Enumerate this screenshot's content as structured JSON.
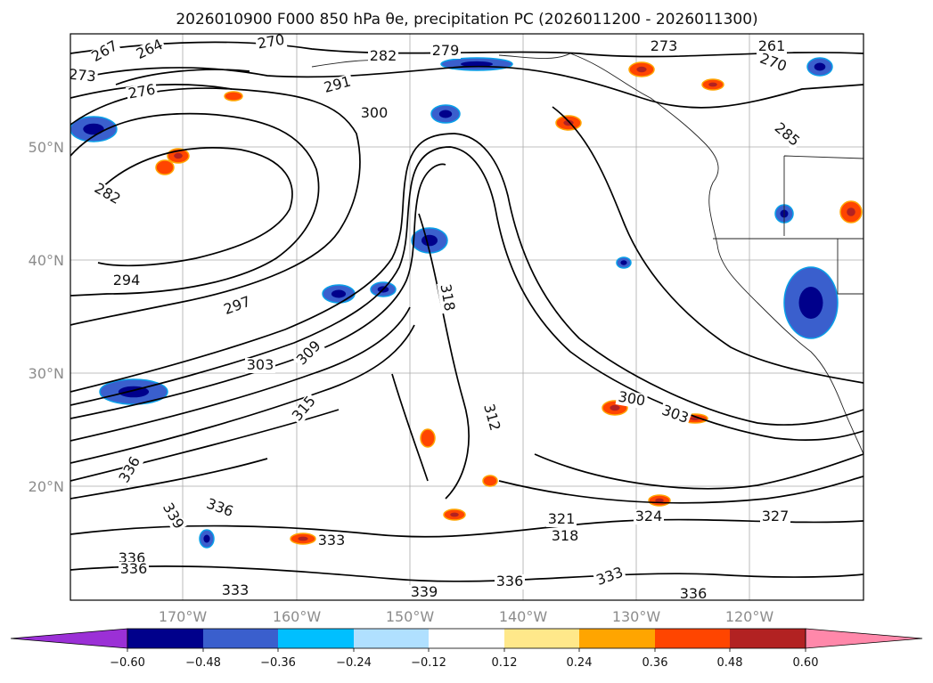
{
  "map": {
    "title": "2026010900 F000 850 hPa θe, precipitation PC (2026011200 - 2026011300)",
    "lat_labels": [
      "50°N",
      "40°N",
      "30°N",
      "20°N"
    ],
    "lon_labels": [
      "170°W",
      "160°W",
      "150°W",
      "140°W",
      "130°W",
      "120°W"
    ],
    "contour_labels": [
      {
        "text": "267"
      },
      {
        "text": "264"
      },
      {
        "text": "270"
      },
      {
        "text": "273"
      },
      {
        "text": "276"
      },
      {
        "text": "279"
      },
      {
        "text": "282"
      },
      {
        "text": "291"
      },
      {
        "text": "300"
      },
      {
        "text": "282"
      },
      {
        "text": "294"
      },
      {
        "text": "297"
      },
      {
        "text": "303"
      },
      {
        "text": "309"
      },
      {
        "text": "318"
      },
      {
        "text": "312"
      },
      {
        "text": "336"
      },
      {
        "text": "336"
      },
      {
        "text": "339"
      },
      {
        "text": "333"
      },
      {
        "text": "339"
      },
      {
        "text": "336"
      },
      {
        "text": "333"
      },
      {
        "text": "336"
      },
      {
        "text": "321"
      },
      {
        "text": "318"
      },
      {
        "text": "324"
      },
      {
        "text": "327"
      },
      {
        "text": "300"
      },
      {
        "text": "303"
      },
      {
        "text": "315"
      },
      {
        "text": "273"
      },
      {
        "text": "261"
      },
      {
        "text": "270"
      },
      {
        "text": "285"
      },
      {
        "text": "336"
      },
      {
        "text": "336"
      },
      {
        "text": "333"
      }
    ],
    "features": [
      {
        "kind": "neg"
      },
      {
        "kind": "neg"
      },
      {
        "kind": "neg"
      },
      {
        "kind": "neg"
      },
      {
        "kind": "neg"
      },
      {
        "kind": "neg"
      },
      {
        "kind": "neg"
      },
      {
        "kind": "neg"
      },
      {
        "kind": "neg"
      },
      {
        "kind": "neg"
      },
      {
        "kind": "neg"
      },
      {
        "kind": "neg"
      },
      {
        "kind": "pos"
      },
      {
        "kind": "pos"
      },
      {
        "kind": "pos"
      },
      {
        "kind": "pos"
      },
      {
        "kind": "pos"
      },
      {
        "kind": "pos"
      },
      {
        "kind": "pos"
      },
      {
        "kind": "pos"
      },
      {
        "kind": "pos"
      },
      {
        "kind": "pos"
      },
      {
        "kind": "pos"
      },
      {
        "kind": "pos"
      },
      {
        "kind": "pos"
      },
      {
        "kind": "pos"
      }
    ]
  },
  "colorbar": {
    "colors": [
      "#9b30d6",
      "#00008b",
      "#3a5fcd",
      "#0aa0e8",
      "#00bfff",
      "#b0e0ff",
      "#ffffff",
      "#ffffff",
      "#ffe88a",
      "#ffa500",
      "#ff4500",
      "#b22222",
      "#ff88aa"
    ],
    "tick_labels": [
      "−0.60",
      "−0.48",
      "−0.36",
      "−0.24",
      "−0.12",
      "0.12",
      "0.24",
      "0.36",
      "0.48",
      "0.60"
    ]
  }
}
